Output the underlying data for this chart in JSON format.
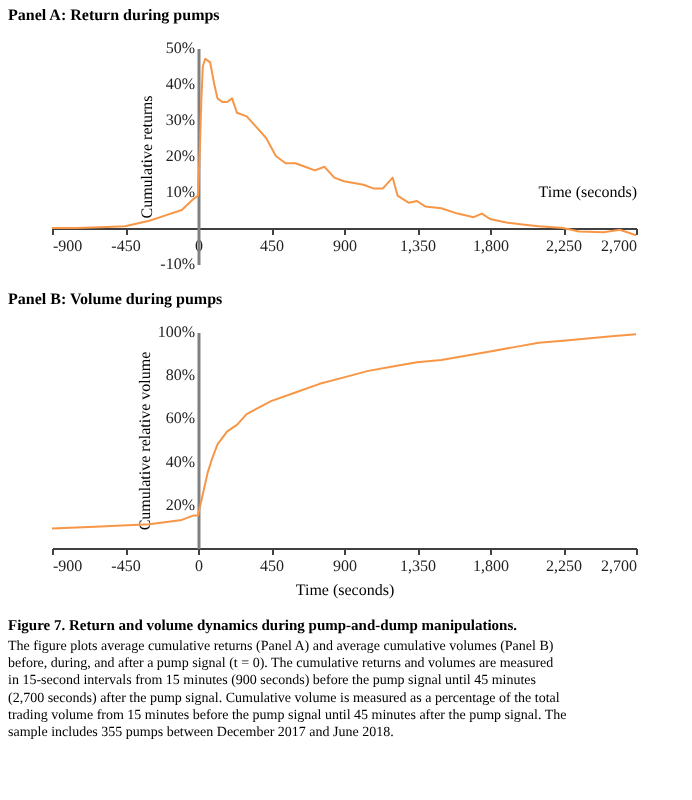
{
  "chart_data": [
    {
      "type": "line",
      "title": "Panel A: Return during pumps",
      "xlabel": "Time (seconds)",
      "ylabel": "Cumulative returns",
      "x": [
        -900,
        -750,
        -600,
        -450,
        -300,
        -200,
        -100,
        -30,
        0,
        10,
        20,
        30,
        45,
        75,
        100,
        120,
        150,
        180,
        210,
        240,
        300,
        360,
        420,
        480,
        540,
        600,
        660,
        720,
        780,
        840,
        900,
        960,
        1020,
        1080,
        1140,
        1200,
        1230,
        1300,
        1350,
        1400,
        1500,
        1600,
        1700,
        1750,
        1800,
        1900,
        2000,
        2100,
        2250,
        2350,
        2500,
        2600,
        2700
      ],
      "series": [
        {
          "color": "#f79646",
          "values": [
            0,
            0,
            0.2,
            0.5,
            2,
            3.5,
            5,
            8,
            9,
            20,
            35,
            45,
            47,
            46,
            40,
            36,
            35,
            35,
            36,
            32,
            31,
            28,
            25,
            20,
            18,
            18,
            17,
            16,
            17,
            14,
            13,
            12.5,
            12,
            11,
            11,
            14,
            9,
            7,
            7.5,
            6,
            5.5,
            4,
            3,
            4,
            2.5,
            1.5,
            1,
            0.5,
            0,
            -1,
            -1.2,
            -0.5,
            -2
          ]
        }
      ],
      "xlim": [
        -900,
        2700
      ],
      "ylim": [
        -10,
        50
      ],
      "xticks": [
        -900,
        -450,
        0,
        450,
        900,
        {
          "value": 1350,
          "label": "1,350"
        },
        {
          "value": 1800,
          "label": "1,800"
        },
        {
          "value": 2250,
          "label": "2,250"
        },
        {
          "value": 2700,
          "label": "2,700"
        }
      ],
      "yticks": [
        {
          "value": -10,
          "label": "-10%"
        },
        {
          "value": 0,
          "label": null
        },
        {
          "value": 10,
          "label": "10%"
        },
        {
          "value": 20,
          "label": "20%"
        },
        {
          "value": 30,
          "label": "30%"
        },
        {
          "value": 40,
          "label": "40%"
        },
        {
          "value": 50,
          "label": "50%"
        }
      ],
      "grid": false
    },
    {
      "type": "line",
      "title": "Panel B: Volume during pumps",
      "xlabel": "Time (seconds)",
      "ylabel": "Cumulative relative volume",
      "x": [
        -900,
        -600,
        -300,
        -100,
        -30,
        0,
        15,
        30,
        60,
        90,
        120,
        180,
        240,
        300,
        450,
        600,
        750,
        900,
        1050,
        1200,
        1350,
        1500,
        1650,
        1800,
        1950,
        2100,
        2250,
        2400,
        2550,
        2700
      ],
      "series": [
        {
          "color": "#f79646",
          "values": [
            9,
            10,
            11,
            13,
            15,
            15,
            20,
            25,
            35,
            42,
            48,
            54,
            57,
            62,
            68,
            72,
            76,
            79,
            82,
            84,
            86,
            87,
            89,
            91,
            93,
            95,
            96,
            97,
            98,
            99
          ]
        }
      ],
      "xlim": [
        -900,
        2700
      ],
      "ylim": [
        0,
        100
      ],
      "xticks": [
        -900,
        -450,
        0,
        450,
        900,
        {
          "value": 1350,
          "label": "1,350"
        },
        {
          "value": 1800,
          "label": "1,800"
        },
        {
          "value": 2250,
          "label": "2,250"
        },
        {
          "value": 2700,
          "label": "2,700"
        }
      ],
      "yticks": [
        {
          "value": 20,
          "label": "20%"
        },
        {
          "value": 40,
          "label": "40%"
        },
        {
          "value": 60,
          "label": "60%"
        },
        {
          "value": 80,
          "label": "80%"
        },
        {
          "value": 100,
          "label": "100%"
        }
      ],
      "grid": false,
      "annotations": [
        "Figure 7. Return and volume dynamics during pump-and-dump manipulations.",
        "The figure plots average cumulative returns (Panel A) and average cumulative volumes (Panel B) before, during, and after a pump signal (t = 0). The cumulative returns and volumes are measured in 15-second intervals from 15 minutes (900 seconds) before the pump signal until 45 minutes (2,700 seconds) after the pump signal. Cumulative volume is measured as a percentage of the total trading volume from 15 minutes before the pump signal until 45 minutes after the pump signal. The sample includes 355 pumps between December 2017 and June 2018."
      ]
    }
  ]
}
